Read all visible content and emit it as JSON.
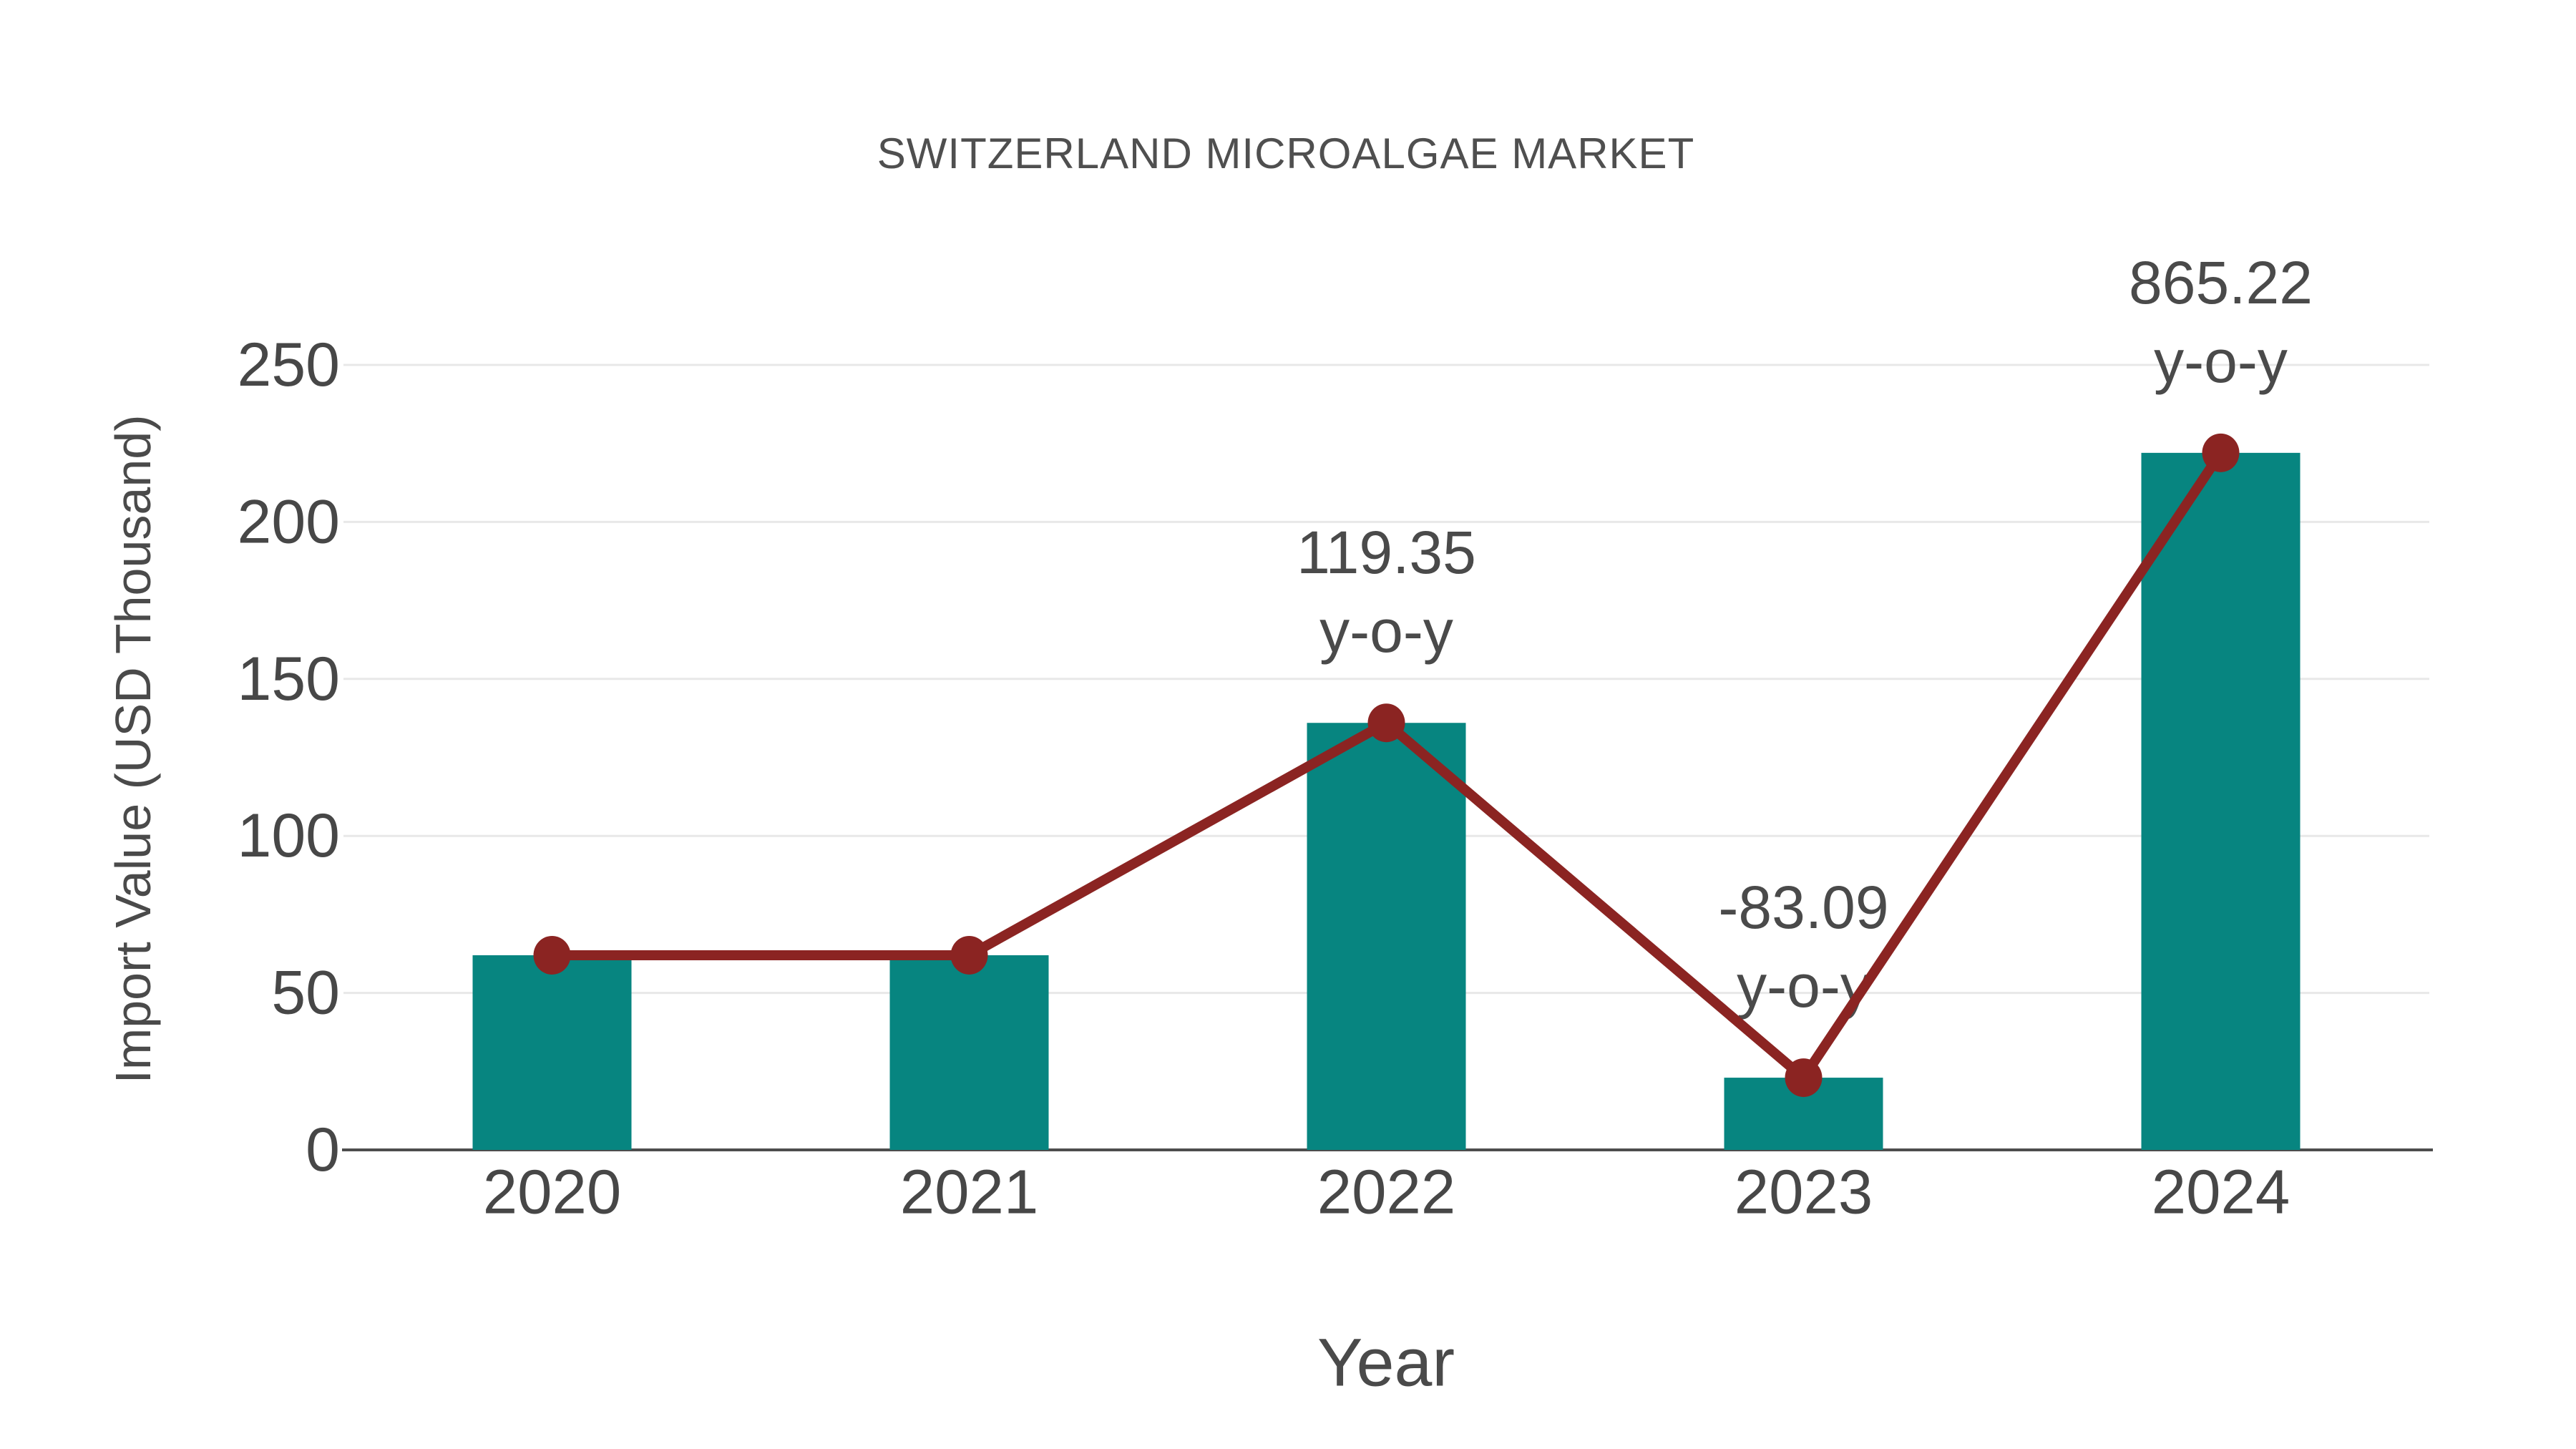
{
  "chart_data": {
    "type": "bar",
    "title": "SWITZERLAND MICROALGAE MARKET",
    "xlabel": "Year",
    "ylabel": "Import Value (USD Thousand)",
    "categories": [
      "2020",
      "2021",
      "2022",
      "2023",
      "2024"
    ],
    "series": [
      {
        "name": "import-value-bars",
        "type": "bar",
        "values": [
          62,
          62,
          136,
          23,
          222
        ],
        "color": "#078580"
      },
      {
        "name": "import-value-trend-line",
        "type": "line",
        "values": [
          62,
          62,
          136,
          23,
          222
        ],
        "color": "#8b2422"
      }
    ],
    "annotations": [
      {
        "category": "2022",
        "lines": [
          "119.35",
          "y-o-y"
        ]
      },
      {
        "category": "2023",
        "lines": [
          "-83.09",
          "y-o-y"
        ]
      },
      {
        "category": "2024",
        "lines": [
          "865.22",
          "y-o-y"
        ]
      }
    ],
    "ylim": [
      0,
      250
    ],
    "yticks": [
      0,
      50,
      100,
      150,
      200,
      250
    ],
    "grid": true,
    "legend": false
  },
  "colors": {
    "bar": "#078580",
    "line": "#8b2422",
    "grid": "#e8e8e8",
    "axis": "#4d4d4d",
    "tick_text": "#474747",
    "annotation_text": "#4a4a4a",
    "title_text": "#4f4f4f"
  }
}
